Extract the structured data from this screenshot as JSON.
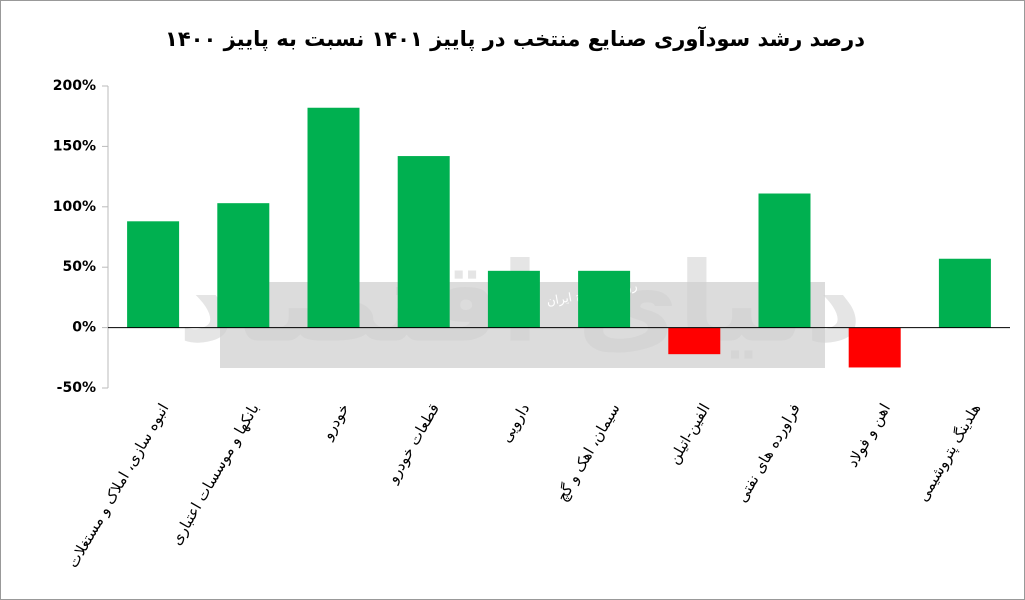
{
  "chart_data": {
    "type": "bar",
    "title": "درصد رشد سودآوری صنایع منتخب در پاییز ۱۴۰۱ نسبت به پاییز ۱۴۰۰",
    "categories": [
      "انبوه سازی، املاک و مستغلات",
      "بانکها و موسسات اعتباری",
      "خودرو",
      "قطعات خودرو",
      "دارویی",
      "سیمان، اهک و گچ",
      "الفین-اتیلن",
      "فراورده های نفتی",
      "اهن و فولاد",
      "هلدینگ پتروشیمی"
    ],
    "values": [
      88,
      103,
      182,
      142,
      47,
      47,
      -22,
      111,
      -33,
      57
    ],
    "colors": [
      "#00b050",
      "#00b050",
      "#00b050",
      "#00b050",
      "#00b050",
      "#00b050",
      "#ff0000",
      "#00b050",
      "#ff0000",
      "#00b050"
    ],
    "ylim": [
      -50,
      200
    ],
    "yticks": [
      {
        "value": -50,
        "label": "-50%"
      },
      {
        "value": 0,
        "label": "0%"
      },
      {
        "value": 50,
        "label": "50%"
      },
      {
        "value": 100,
        "label": "100%"
      },
      {
        "value": 150,
        "label": "150%"
      },
      {
        "value": 200,
        "label": "200%"
      }
    ],
    "grid": false,
    "watermark": {
      "logo": "دنیای اقتصاد",
      "tagline": "روزنامه صبح ایران"
    }
  }
}
